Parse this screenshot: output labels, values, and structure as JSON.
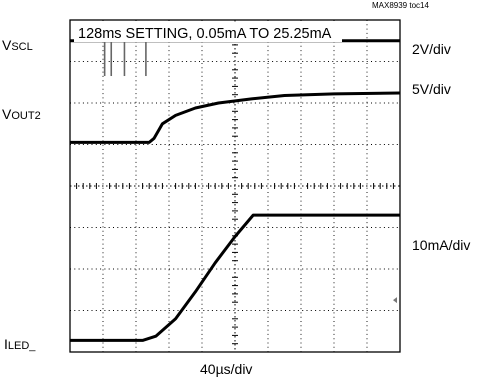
{
  "toc_id": "MAX8939 toc14",
  "chart_data": {
    "type": "line",
    "title": "128ms SETTING, 0.05mA TO 25.25mA",
    "xlabel": "40µs/div",
    "grid": true,
    "x_divisions": 10,
    "y_divisions": 8,
    "traces": [
      {
        "label_main": "V",
        "label_sub": "SCL",
        "scale": "2V/div",
        "baseline_div": 7.5,
        "pulses_at_div": [
          1.05,
          1.25,
          1.65,
          2.3
        ],
        "pulse_depth_div": 0.85
      },
      {
        "label_main": "V",
        "label_sub": "OUT2",
        "scale": "5V/div",
        "points_div": [
          [
            0,
            5.05
          ],
          [
            2.4,
            5.05
          ],
          [
            2.55,
            5.15
          ],
          [
            2.8,
            5.5
          ],
          [
            3.2,
            5.7
          ],
          [
            3.8,
            5.88
          ],
          [
            4.5,
            6.0
          ],
          [
            5.5,
            6.1
          ],
          [
            6.5,
            6.18
          ],
          [
            8,
            6.22
          ],
          [
            10,
            6.24
          ]
        ]
      },
      {
        "label_main": "I",
        "label_sub": "LED_",
        "scale": "10mA/div",
        "points_div": [
          [
            0,
            0.28
          ],
          [
            2.2,
            0.28
          ],
          [
            2.6,
            0.38
          ],
          [
            3.2,
            0.8
          ],
          [
            3.8,
            1.45
          ],
          [
            4.4,
            2.15
          ],
          [
            5.0,
            2.78
          ],
          [
            5.55,
            3.3
          ],
          [
            10,
            3.3
          ]
        ]
      }
    ]
  }
}
